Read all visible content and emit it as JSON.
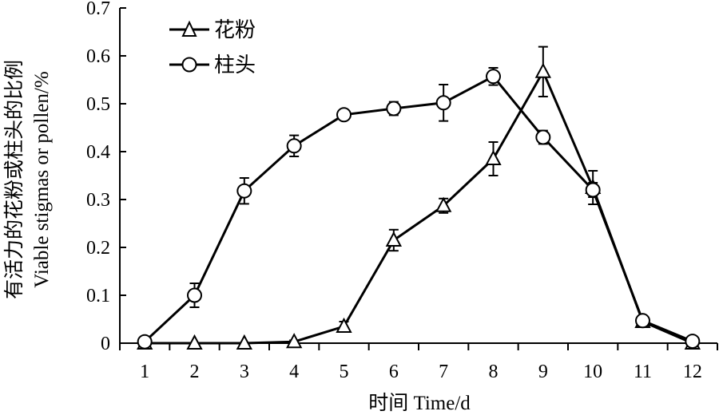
{
  "chart_data": {
    "type": "line",
    "x": [
      1,
      2,
      3,
      4,
      5,
      6,
      7,
      8,
      9,
      10,
      11,
      12
    ],
    "xlabel": "时间 Time/d",
    "ylabel_line1": "有活力的花粉或柱头的比例",
    "ylabel_line2": "Viable stigmas or pollen/%",
    "xlim": [
      0.5,
      12.5
    ],
    "ylim": [
      0,
      0.7
    ],
    "x_ticks": [
      "1",
      "2",
      "3",
      "4",
      "5",
      "6",
      "7",
      "8",
      "9",
      "10",
      "11",
      "12"
    ],
    "y_ticks": [
      "0",
      "0.1",
      "0.2",
      "0.3",
      "0.4",
      "0.5",
      "0.6",
      "0.7"
    ],
    "grid": false,
    "legend_position": "top-left",
    "series": [
      {
        "name": "花粉",
        "marker": "triangle",
        "values": [
          0,
          0,
          0,
          0.003,
          0.035,
          0.215,
          0.287,
          0.385,
          0.567,
          0.325,
          0.045,
          0
        ],
        "error": [
          0,
          0,
          0,
          0.003,
          0.01,
          0.022,
          0.015,
          0.035,
          0.052,
          0.035,
          0.01,
          0
        ]
      },
      {
        "name": "柱头",
        "marker": "circle",
        "values": [
          0.003,
          0.1,
          0.318,
          0.412,
          0.477,
          0.49,
          0.502,
          0.557,
          0.43,
          0.32,
          0.047,
          0.004
        ],
        "error": [
          0,
          0.025,
          0.027,
          0.022,
          0.009,
          0.014,
          0.038,
          0.018,
          0.014,
          0.015,
          0.008,
          0
        ]
      }
    ],
    "colors": {
      "line": "#000000",
      "background": "#ffffff"
    }
  }
}
